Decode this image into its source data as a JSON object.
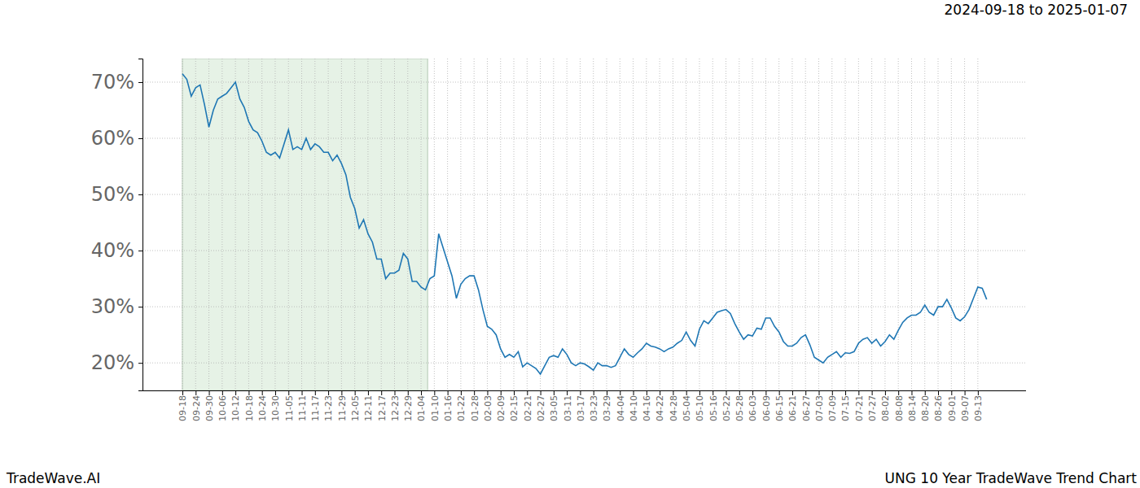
{
  "chart_data": {
    "type": "line",
    "title": "UNG 10 Year TradeWave Trend Chart",
    "subtitle": "2024-09-18 to 2025-01-07",
    "footer": "TradeWave.AI",
    "categories": [
      "09-18",
      null,
      null,
      "09-24",
      null,
      null,
      "09-30",
      null,
      null,
      "10-06",
      null,
      null,
      "10-12",
      null,
      null,
      "10-18",
      null,
      null,
      "10-24",
      null,
      null,
      "10-30",
      null,
      null,
      "11-05",
      null,
      null,
      "11-11",
      null,
      null,
      "11-17",
      null,
      null,
      "11-23",
      null,
      null,
      "11-29",
      null,
      null,
      "12-05",
      null,
      null,
      "12-11",
      null,
      null,
      "12-17",
      null,
      null,
      "12-23",
      null,
      null,
      "12-29",
      null,
      null,
      "01-04",
      null,
      null,
      "01-10",
      null,
      null,
      "01-16",
      null,
      null,
      "01-22",
      null,
      null,
      "01-28",
      null,
      null,
      "02-03",
      null,
      null,
      "02-09",
      null,
      null,
      "02-15",
      null,
      null,
      "02-21",
      null,
      null,
      "02-27",
      null,
      null,
      "03-05",
      null,
      null,
      "03-11",
      null,
      null,
      "03-17",
      null,
      null,
      "03-23",
      null,
      null,
      "03-29",
      null,
      null,
      "04-04",
      null,
      null,
      "04-10",
      null,
      null,
      "04-16",
      null,
      null,
      "04-22",
      null,
      null,
      "04-28",
      null,
      null,
      "05-04",
      null,
      null,
      "05-10",
      null,
      null,
      "05-16",
      null,
      null,
      "05-22",
      null,
      null,
      "05-28",
      null,
      null,
      "06-03",
      null,
      null,
      "06-09",
      null,
      null,
      "06-15",
      null,
      null,
      "06-21",
      null,
      null,
      "06-27",
      null,
      null,
      "07-03",
      null,
      null,
      "07-09",
      null,
      null,
      "07-15",
      null,
      null,
      "07-21",
      null,
      null,
      "07-27",
      null,
      null,
      "08-02",
      null,
      null,
      "08-08",
      null,
      null,
      "08-14",
      null,
      null,
      "08-20",
      null,
      null,
      "08-26",
      null,
      null,
      "09-01",
      null,
      null,
      "09-07",
      null,
      null,
      "09-13",
      null,
      null
    ],
    "values": [
      71.5,
      70.5,
      67.5,
      69,
      69.5,
      66,
      62,
      65,
      67,
      67.5,
      68,
      69,
      70,
      67,
      65.5,
      63,
      61.5,
      61,
      59.5,
      57.5,
      57,
      57.5,
      56.5,
      59,
      61.5,
      58,
      58.5,
      58,
      60,
      58,
      59,
      58.5,
      57.5,
      57.5,
      56,
      57,
      55.5,
      53.5,
      49.5,
      47.5,
      44,
      45.5,
      43,
      41.5,
      38.5,
      38.5,
      35,
      36,
      36,
      36.5,
      39.5,
      38.5,
      34.5,
      34.5,
      33.5,
      33,
      35,
      35.5,
      43,
      40.5,
      38,
      35.5,
      31.5,
      34,
      35,
      35.5,
      35.5,
      33,
      29.5,
      26.5,
      26,
      25,
      22.5,
      21,
      21.5,
      21,
      22,
      19.3,
      20,
      19.5,
      19,
      18,
      19.5,
      21,
      21.3,
      21,
      22.5,
      21.5,
      20,
      19.5,
      20,
      19.8,
      19.3,
      18.7,
      20,
      19.5,
      19.5,
      19.2,
      19.5,
      21,
      22.5,
      21.5,
      21,
      21.8,
      22.5,
      23.5,
      23,
      22.8,
      22.5,
      22,
      22.5,
      22.8,
      23.5,
      24,
      25.5,
      24,
      23,
      26,
      27.5,
      27,
      28,
      29,
      29.3,
      29.5,
      28.8,
      27,
      25.5,
      24.2,
      25,
      24.8,
      26.2,
      26,
      28,
      28,
      26.5,
      25.5,
      23.8,
      23,
      23,
      23.5,
      24.5,
      25,
      23.2,
      21,
      20.5,
      20,
      21,
      21.5,
      22,
      21,
      21.8,
      21.7,
      22,
      23.5,
      24.2,
      24.5,
      23.5,
      24.2,
      23,
      23.8,
      25,
      24.2,
      25.8,
      27.2,
      28,
      28.5,
      28.5,
      29,
      30.3,
      29,
      28.5,
      30,
      30,
      31.3,
      29.8,
      28,
      27.5,
      28.2,
      29.5,
      31.5,
      33.5,
      33.3,
      31.3
    ],
    "color": "#1f77b4",
    "shaded_range": [
      0,
      55.5
    ],
    "ylim": [
      15.1,
      74.2
    ],
    "yticks": [
      {
        "value": 20,
        "label": "20%"
      },
      {
        "value": 30,
        "label": "30%"
      },
      {
        "value": 40,
        "label": "40%"
      },
      {
        "value": 50,
        "label": "50%"
      },
      {
        "value": 60,
        "label": "60%"
      },
      {
        "value": 70,
        "label": "70%"
      }
    ],
    "grid": true
  }
}
